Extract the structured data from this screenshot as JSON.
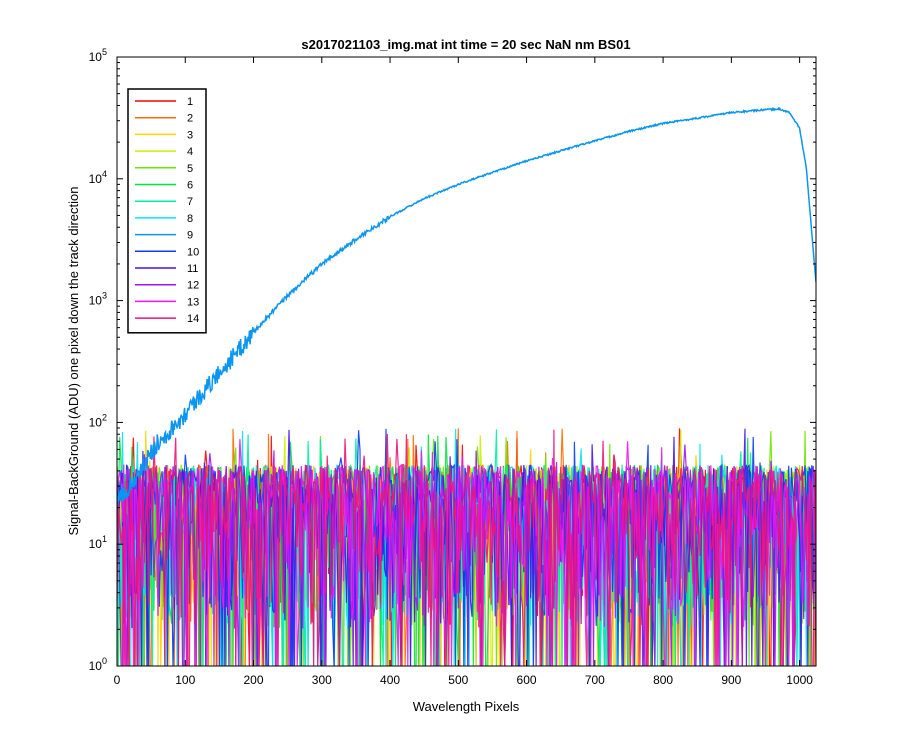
{
  "chart_data": {
    "type": "line",
    "title": "s2017021103_img.mat int time = 20 sec  NaN nm BS01",
    "xlabel": "Wavelength Pixels",
    "ylabel": "Signal-BackGround (ADU) one pixel down the track direction",
    "y_scale": "log",
    "xlim": [
      0,
      1024
    ],
    "ylim": [
      1,
      100000
    ],
    "x_ticks": [
      {
        "value": 0,
        "label": "0"
      },
      {
        "value": 100,
        "label": "100"
      },
      {
        "value": 200,
        "label": "200"
      },
      {
        "value": 300,
        "label": "300"
      },
      {
        "value": 400,
        "label": "400"
      },
      {
        "value": 500,
        "label": "500"
      },
      {
        "value": 600,
        "label": "600"
      },
      {
        "value": 700,
        "label": "700"
      },
      {
        "value": 800,
        "label": "800"
      },
      {
        "value": 900,
        "label": "900"
      },
      {
        "value": 1000,
        "label": "1000"
      }
    ],
    "y_ticks": [
      {
        "value": 1,
        "base": "10",
        "exp": "0"
      },
      {
        "value": 10,
        "base": "10",
        "exp": "1"
      },
      {
        "value": 100,
        "base": "10",
        "exp": "2"
      },
      {
        "value": 1000,
        "base": "10",
        "exp": "3"
      },
      {
        "value": 10000,
        "base": "10",
        "exp": "4"
      },
      {
        "value": 100000,
        "base": "10",
        "exp": "5"
      }
    ],
    "grid": false,
    "legend_position": "top-left",
    "signal_series": {
      "name": "9",
      "x": [
        0,
        20,
        40,
        60,
        80,
        100,
        130,
        160,
        200,
        250,
        300,
        350,
        400,
        450,
        500,
        550,
        600,
        650,
        700,
        750,
        800,
        850,
        900,
        940,
        970,
        985,
        1000,
        1010,
        1024
      ],
      "y": [
        25,
        30,
        45,
        70,
        90,
        120,
        190,
        300,
        550,
        1100,
        2000,
        3200,
        4900,
        6900,
        9000,
        11300,
        14000,
        17000,
        20500,
        24500,
        28500,
        31500,
        35000,
        36500,
        37500,
        35000,
        26000,
        12000,
        1400
      ]
    },
    "noise_level": {
      "typical": [
        3,
        45
      ],
      "max": 90,
      "min": 1
    },
    "series": [
      {
        "name": "1",
        "color": "#ff0000"
      },
      {
        "name": "2",
        "color": "#ff6e00"
      },
      {
        "name": "3",
        "color": "#ffd100"
      },
      {
        "name": "4",
        "color": "#c8f000"
      },
      {
        "name": "5",
        "color": "#6ee600"
      },
      {
        "name": "6",
        "color": "#00e63c"
      },
      {
        "name": "7",
        "color": "#00f0a0"
      },
      {
        "name": "8",
        "color": "#00e6f0"
      },
      {
        "name": "9",
        "color": "#0a96f0"
      },
      {
        "name": "10",
        "color": "#0a3cf0"
      },
      {
        "name": "11",
        "color": "#4614f0"
      },
      {
        "name": "12",
        "color": "#a014f0"
      },
      {
        "name": "13",
        "color": "#f014f0"
      },
      {
        "name": "14",
        "color": "#f01478"
      }
    ]
  }
}
